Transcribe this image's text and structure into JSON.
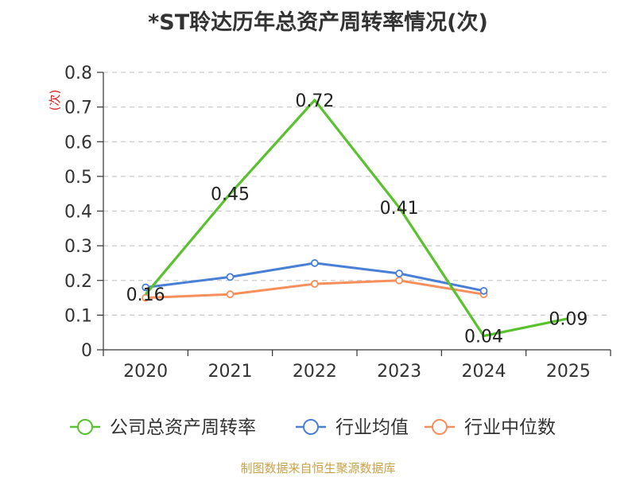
{
  "chart_data": {
    "type": "line",
    "title": "*ST聆达历年总资产周转率情况(次)",
    "xlabel": "",
    "ylabel": "(次)",
    "categories": [
      "2020",
      "2021",
      "2022",
      "2023",
      "2024",
      "2025"
    ],
    "ylim": [
      0,
      0.8
    ],
    "yticks": [
      "0",
      "0.1",
      "0.2",
      "0.3",
      "0.4",
      "0.5",
      "0.6",
      "0.7",
      "0.8"
    ],
    "grid": true,
    "legend_position": "bottom",
    "series": [
      {
        "name": "公司总资产周转率",
        "color": "#5ac12f",
        "values": [
          0.16,
          0.45,
          0.72,
          0.41,
          0.04,
          0.09
        ],
        "labels": [
          "0.16",
          "0.45",
          "0.72",
          "0.41",
          "0.04",
          "0.09"
        ]
      },
      {
        "name": "行业均值",
        "color": "#4a7fd6",
        "values": [
          0.18,
          0.21,
          0.25,
          0.22,
          0.17,
          null
        ]
      },
      {
        "name": "行业中位数",
        "color": "#f78f5c",
        "values": [
          0.15,
          0.16,
          0.19,
          0.2,
          0.16,
          null
        ]
      }
    ],
    "source": "制图数据来自恒生聚源数据库"
  }
}
